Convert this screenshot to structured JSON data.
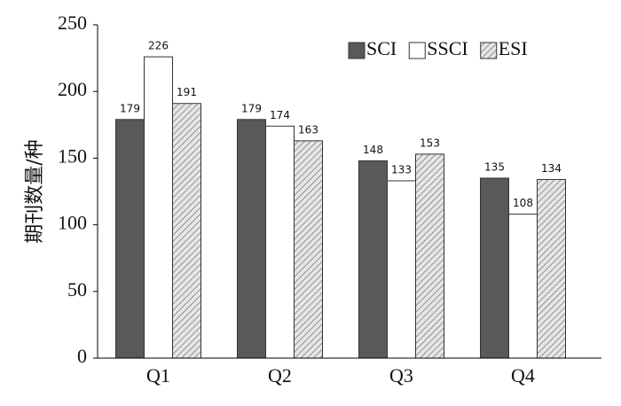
{
  "chart_data": {
    "type": "bar",
    "y_label": "期刊数量/种",
    "categories": [
      "Q1",
      "Q2",
      "Q3",
      "Q4"
    ],
    "series": [
      {
        "name": "SCI",
        "color": "#595959",
        "values": [
          179,
          179,
          148,
          135
        ]
      },
      {
        "name": "SSCI",
        "color": "#ffffff",
        "values": [
          226,
          174,
          133,
          108
        ]
      },
      {
        "name": "ESI",
        "color": "#e6e6e6",
        "hatch": true,
        "values": [
          191,
          163,
          153,
          134
        ]
      }
    ],
    "ylim": [
      0,
      250
    ],
    "yticks": [
      0,
      50,
      100,
      150,
      200,
      250
    ],
    "grid": false,
    "legend": "top-right"
  }
}
